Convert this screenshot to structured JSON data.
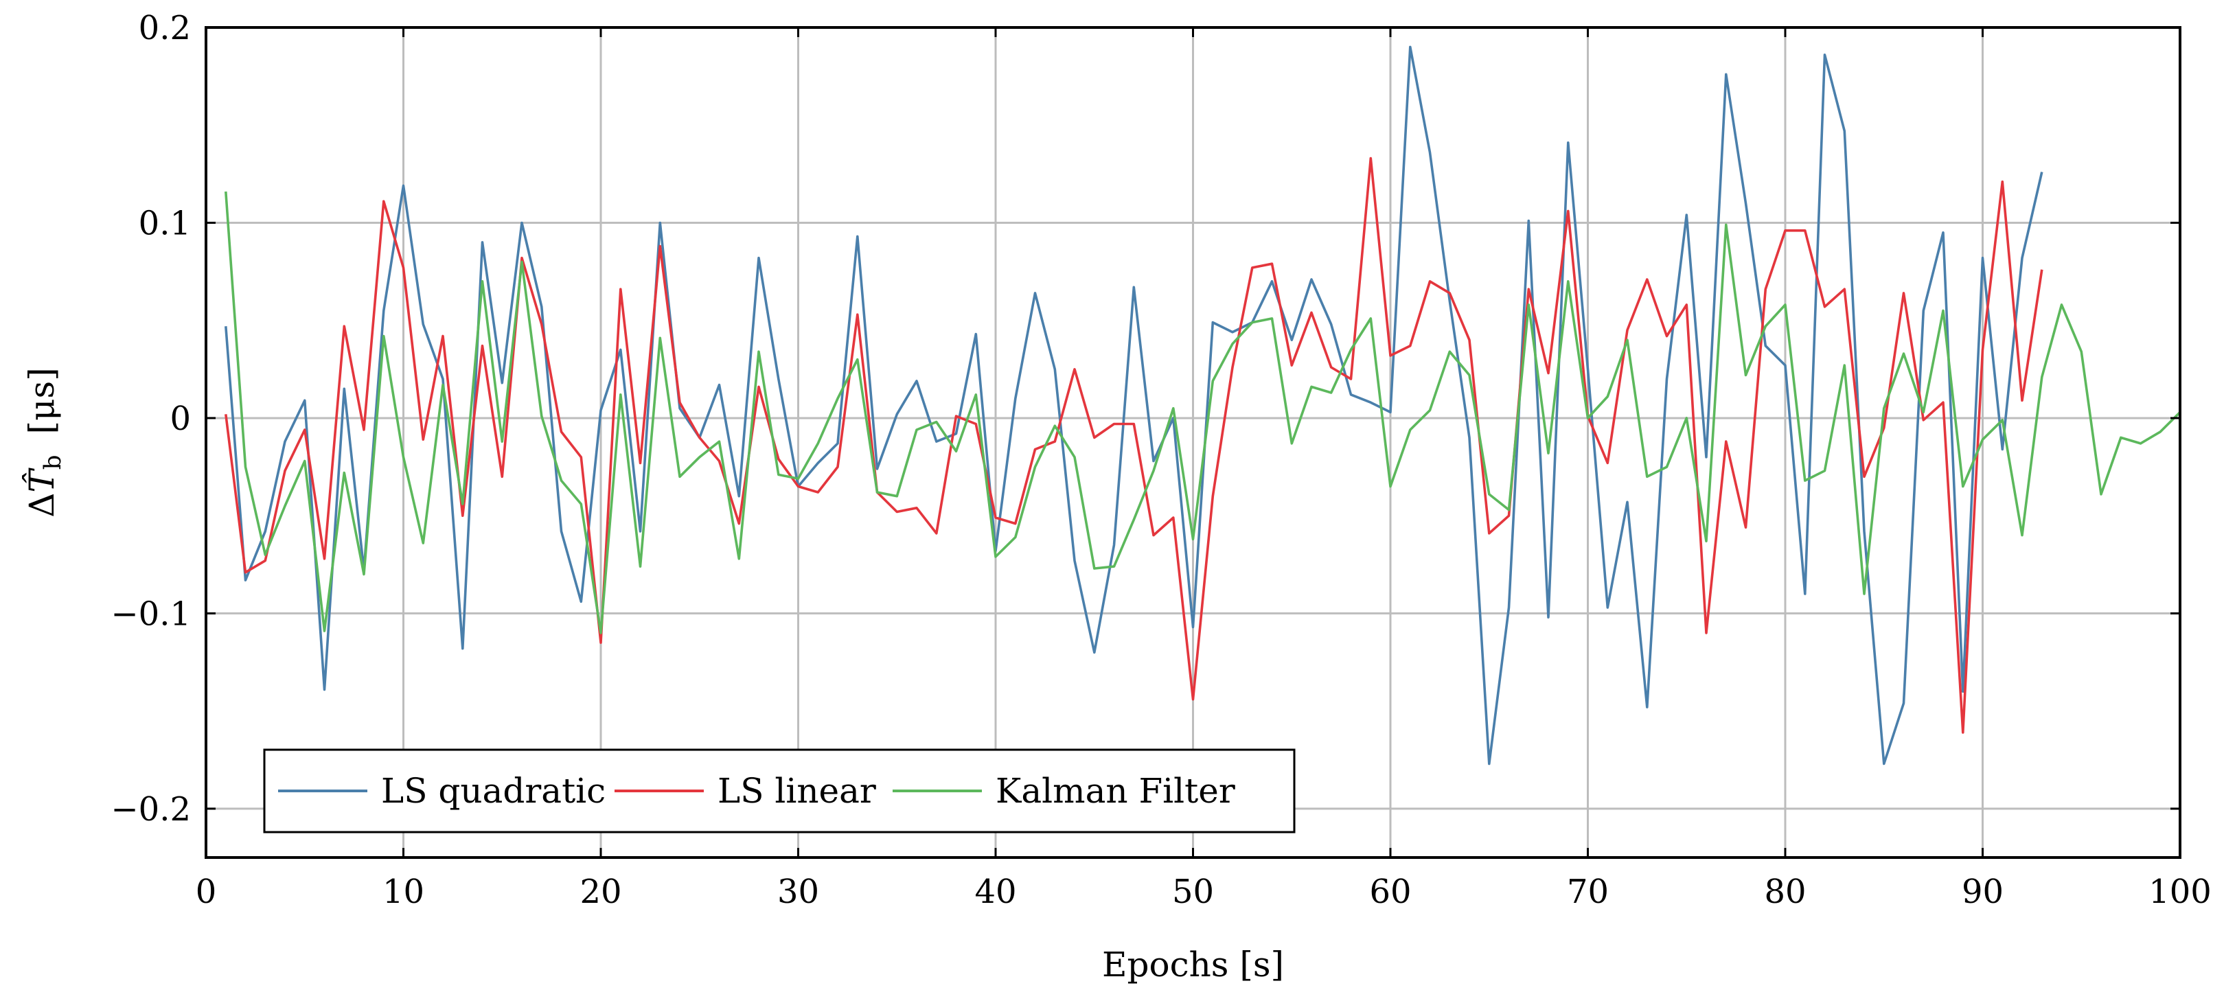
{
  "chart_data": {
    "type": "line",
    "title": "",
    "xlabel": "Epochs  [s]",
    "ylabel_parts": {
      "delta": "Δ",
      "symbol": "T̂",
      "subscript": "b",
      "unit": "[μs]"
    },
    "xlim": [
      0,
      100
    ],
    "ylim": [
      -0.225,
      0.2
    ],
    "xticks": [
      0,
      10,
      20,
      30,
      40,
      50,
      60,
      70,
      80,
      90,
      100
    ],
    "xtick_labels": [
      "0",
      "10",
      "20",
      "30",
      "40",
      "50",
      "60",
      "70",
      "80",
      "90",
      "100"
    ],
    "yticks": [
      -0.2,
      -0.1,
      0,
      0.1,
      0.2
    ],
    "ytick_labels": [
      "−0.2",
      "−0.1",
      "0",
      "0.1",
      "0.2"
    ],
    "grid": true,
    "legend_position": "bottom-left",
    "series": [
      {
        "name": "LS quadratic",
        "color": "#4a7fab",
        "x": [
          1,
          2,
          3,
          4,
          5,
          6,
          7,
          8,
          9,
          10,
          11,
          12,
          13,
          14,
          15,
          16,
          17,
          18,
          19,
          20,
          21,
          22,
          23,
          24,
          25,
          26,
          27,
          28,
          29,
          30,
          31,
          32,
          33,
          34,
          35,
          36,
          37,
          38,
          39,
          40,
          41,
          42,
          43,
          44,
          45,
          46,
          47,
          48,
          49,
          50,
          51,
          52,
          53,
          54,
          55,
          56,
          57,
          58,
          59,
          60,
          61,
          62,
          63,
          64,
          65,
          66,
          67,
          68,
          69,
          70,
          71,
          72,
          73,
          74,
          75,
          76,
          77,
          78,
          79,
          80,
          81,
          82,
          83,
          84,
          85,
          86,
          87,
          88,
          89,
          90,
          91,
          92,
          93
        ],
        "values": [
          0.047,
          -0.083,
          -0.058,
          -0.012,
          0.009,
          -0.139,
          0.015,
          -0.078,
          0.055,
          0.119,
          0.048,
          0.02,
          -0.118,
          0.09,
          0.018,
          0.1,
          0.057,
          -0.058,
          -0.094,
          0.004,
          0.035,
          -0.058,
          0.1,
          0.005,
          -0.01,
          0.017,
          -0.04,
          0.082,
          0.02,
          -0.035,
          -0.023,
          -0.013,
          0.093,
          -0.026,
          0.002,
          0.019,
          -0.012,
          -0.008,
          0.043,
          -0.068,
          0.01,
          0.064,
          0.025,
          -0.073,
          -0.12,
          -0.065,
          0.067,
          -0.022,
          0.0,
          -0.107,
          0.049,
          0.044,
          0.049,
          0.07,
          0.04,
          0.071,
          0.048,
          0.012,
          0.008,
          0.003,
          0.19,
          0.136,
          0.06,
          -0.01,
          -0.177,
          -0.097,
          0.101,
          -0.102,
          0.141,
          0.025,
          -0.097,
          -0.043,
          -0.148,
          0.02,
          0.104,
          -0.02,
          0.176,
          0.11,
          0.037,
          0.027,
          -0.09,
          0.186,
          0.147,
          -0.058,
          -0.177,
          -0.146,
          0.055,
          0.095,
          -0.14,
          0.082,
          -0.016,
          0.082,
          0.126
        ]
      },
      {
        "name": "LS linear",
        "color": "#e4363d",
        "x": [
          1,
          2,
          3,
          4,
          5,
          6,
          7,
          8,
          9,
          10,
          11,
          12,
          13,
          14,
          15,
          16,
          17,
          18,
          19,
          20,
          21,
          22,
          23,
          24,
          25,
          26,
          27,
          28,
          29,
          30,
          31,
          32,
          33,
          34,
          35,
          36,
          37,
          38,
          39,
          40,
          41,
          42,
          43,
          44,
          45,
          46,
          47,
          48,
          49,
          50,
          51,
          52,
          53,
          54,
          55,
          56,
          57,
          58,
          59,
          60,
          61,
          62,
          63,
          64,
          65,
          66,
          67,
          68,
          69,
          70,
          71,
          72,
          73,
          74,
          75,
          76,
          77,
          78,
          79,
          80,
          81,
          82,
          83,
          84,
          85,
          86,
          87,
          88,
          89,
          90,
          91,
          92,
          93
        ],
        "values": [
          0.002,
          -0.079,
          -0.073,
          -0.027,
          -0.006,
          -0.072,
          0.047,
          -0.006,
          0.111,
          0.077,
          -0.011,
          0.042,
          -0.05,
          0.037,
          -0.03,
          0.082,
          0.048,
          -0.007,
          -0.02,
          -0.115,
          0.066,
          -0.023,
          0.088,
          0.008,
          -0.01,
          -0.022,
          -0.054,
          0.016,
          -0.021,
          -0.035,
          -0.038,
          -0.025,
          0.053,
          -0.038,
          -0.048,
          -0.046,
          -0.059,
          0.001,
          -0.003,
          -0.051,
          -0.054,
          -0.016,
          -0.012,
          0.025,
          -0.01,
          -0.003,
          -0.003,
          -0.06,
          -0.051,
          -0.144,
          -0.04,
          0.026,
          0.077,
          0.079,
          0.027,
          0.054,
          0.026,
          0.02,
          0.133,
          0.032,
          0.037,
          0.07,
          0.064,
          0.04,
          -0.059,
          -0.05,
          0.066,
          0.023,
          0.106,
          0.001,
          -0.023,
          0.045,
          0.071,
          0.042,
          0.058,
          -0.11,
          -0.012,
          -0.056,
          0.066,
          0.096,
          0.096,
          0.057,
          0.066,
          -0.03,
          -0.005,
          0.064,
          -0.001,
          0.008,
          -0.161,
          0.035,
          0.121,
          0.009,
          0.076
        ]
      },
      {
        "name": "Kalman Filter",
        "color": "#5cb85c",
        "x": [
          1,
          2,
          3,
          4,
          5,
          6,
          7,
          8,
          9,
          10,
          11,
          12,
          13,
          14,
          15,
          16,
          17,
          18,
          19,
          20,
          21,
          22,
          23,
          24,
          25,
          26,
          27,
          28,
          29,
          30,
          31,
          32,
          33,
          34,
          35,
          36,
          37,
          38,
          39,
          40,
          41,
          42,
          43,
          44,
          45,
          46,
          47,
          48,
          49,
          50,
          51,
          52,
          53,
          54,
          55,
          56,
          57,
          58,
          59,
          60,
          61,
          62,
          63,
          64,
          65,
          66,
          67,
          68,
          69,
          70,
          71,
          72,
          73,
          74,
          75,
          76,
          77,
          78,
          79,
          80,
          81,
          82,
          83,
          84,
          85,
          86,
          87,
          88,
          89,
          90,
          91,
          92,
          93,
          94,
          95,
          96,
          97,
          98,
          99,
          100
        ],
        "values": [
          0.116,
          -0.025,
          -0.07,
          -0.045,
          -0.022,
          -0.109,
          -0.028,
          -0.08,
          0.042,
          -0.02,
          -0.064,
          0.017,
          -0.044,
          0.07,
          -0.012,
          0.08,
          0.001,
          -0.032,
          -0.044,
          -0.11,
          0.012,
          -0.076,
          0.041,
          -0.03,
          -0.02,
          -0.012,
          -0.072,
          0.034,
          -0.029,
          -0.031,
          -0.013,
          0.01,
          0.03,
          -0.038,
          -0.04,
          -0.006,
          -0.002,
          -0.017,
          0.012,
          -0.071,
          -0.061,
          -0.025,
          -0.004,
          -0.02,
          -0.077,
          -0.076,
          -0.052,
          -0.027,
          0.005,
          -0.062,
          0.019,
          0.038,
          0.049,
          0.051,
          -0.013,
          0.016,
          0.013,
          0.035,
          0.051,
          -0.035,
          -0.006,
          0.004,
          0.034,
          0.022,
          -0.039,
          -0.047,
          0.058,
          -0.018,
          0.07,
          0.0,
          0.011,
          0.04,
          -0.03,
          -0.025,
          0.0,
          -0.063,
          0.099,
          0.022,
          0.047,
          0.058,
          -0.032,
          -0.027,
          0.027,
          -0.09,
          0.005,
          0.033,
          0.003,
          0.055,
          -0.035,
          -0.011,
          -0.001,
          -0.06,
          0.021,
          0.058,
          0.034,
          -0.039,
          -0.01,
          -0.013,
          -0.007,
          0.003
        ]
      }
    ]
  }
}
